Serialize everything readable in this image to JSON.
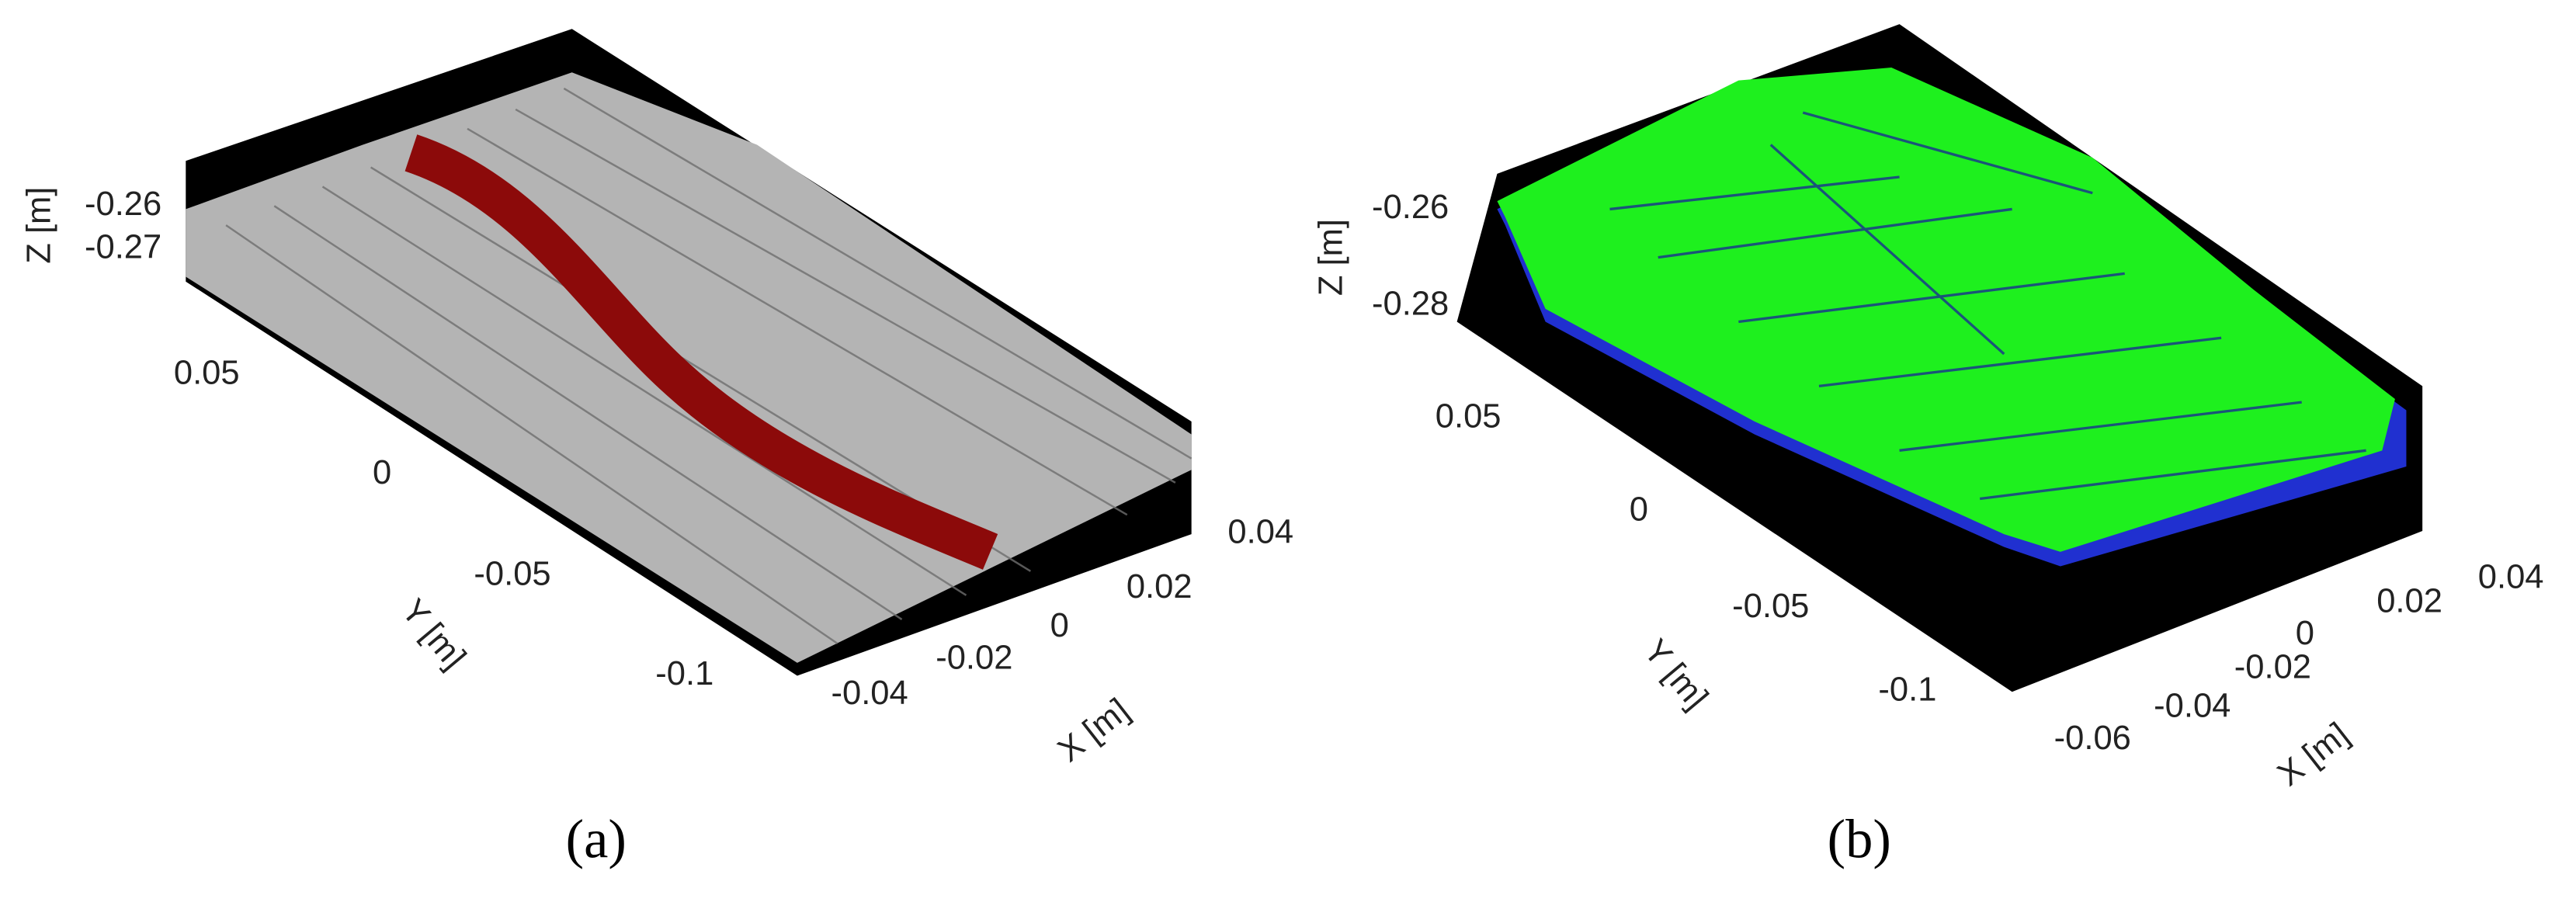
{
  "panels": [
    {
      "caption": "(a)",
      "z_label": "Z [m]",
      "y_label": "Y [m]",
      "x_label": "X [m]",
      "z_ticks": [
        "-0.26",
        "-0.27"
      ],
      "y_ticks": [
        "0.05",
        "0",
        "-0.05",
        "-0.1"
      ],
      "x_ticks": [
        "-0.04",
        "-0.02",
        "0",
        "0.02",
        "0.04"
      ]
    },
    {
      "caption": "(b)",
      "z_label": "Z [m]",
      "y_label": "Y [m]",
      "x_label": "X [m]",
      "z_ticks": [
        "-0.26",
        "-0.28"
      ],
      "y_ticks": [
        "0.05",
        "0",
        "-0.05",
        "-0.1"
      ],
      "x_ticks": [
        "-0.06",
        "-0.04",
        "-0.02",
        "0",
        "0.02",
        "0.04"
      ]
    }
  ]
}
